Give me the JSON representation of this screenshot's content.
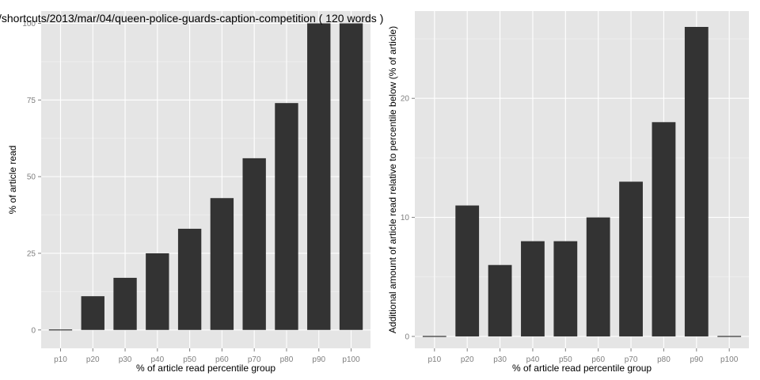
{
  "chart_data": [
    {
      "type": "bar",
      "title": "/shortcuts/2013/mar/04/queen-police-guards-caption-competition ( 120 words )",
      "xlabel": "% of article read percentile group",
      "ylabel": "% of article read",
      "categories": [
        "p10",
        "p20",
        "p30",
        "p40",
        "p50",
        "p60",
        "p70",
        "p80",
        "p90",
        "p100"
      ],
      "values": [
        0,
        11,
        17,
        25,
        33,
        43,
        56,
        74,
        100,
        100
      ],
      "ylim": [
        -6,
        104
      ],
      "yticks": [
        0,
        25,
        50,
        75,
        100
      ],
      "grid": true,
      "bar_color": "#333333",
      "panel_color": "#e5e5e5"
    },
    {
      "type": "bar",
      "title": "",
      "xlabel": "% of article read percentile group",
      "ylabel": "Additional amount of article read relative to percentile below (% of article)",
      "categories": [
        "p10",
        "p20",
        "p30",
        "p40",
        "p50",
        "p60",
        "p70",
        "p80",
        "p90",
        "p100"
      ],
      "values": [
        0,
        11,
        6,
        8,
        8,
        10,
        13,
        18,
        26,
        0
      ],
      "ylim": [
        -1,
        27.33
      ],
      "yticks": [
        0,
        10,
        20
      ],
      "grid": true,
      "bar_color": "#333333",
      "panel_color": "#e5e5e5"
    }
  ]
}
